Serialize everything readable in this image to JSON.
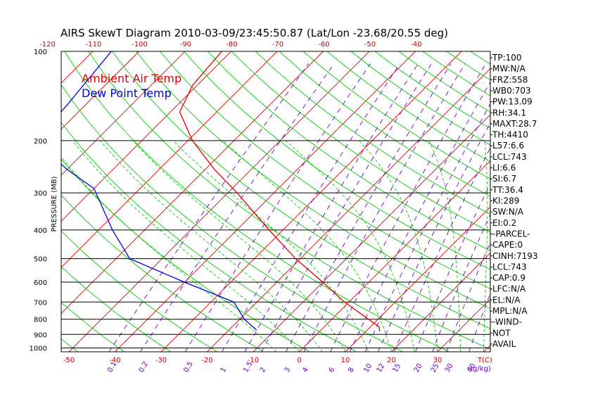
{
  "chart_data": {
    "type": "line",
    "title": "AIRS SkewT Diagram 2010-03-09/23:45:50.87 (Lat/Lon -23.68/20.55 deg)",
    "ylabel": "PRESSURE (MB)",
    "xlabel": "T(C)",
    "mixing_ratio_unit": "r(g/kg)",
    "pressure_ticks": [
      100,
      200,
      300,
      400,
      500,
      600,
      700,
      800,
      900,
      1000
    ],
    "bottom_temp_ticks": [
      -50,
      -40,
      -30,
      -20,
      -10,
      0,
      10,
      20,
      30
    ],
    "top_temp_ticks": [
      -120,
      -110,
      -100,
      -90,
      -80,
      -70,
      -60,
      -50,
      -40
    ],
    "mixing_ratio_labels": [
      "0.1",
      "0.2",
      "0.5",
      "1",
      "1.5",
      "2",
      "3",
      "4",
      "6",
      "8",
      "10",
      "12",
      "15",
      "20",
      "25",
      "30",
      "40"
    ],
    "series": [
      {
        "name": "Ambient Air Temp",
        "color": "#e00000",
        "points": [
          {
            "p": 100,
            "t": -82
          },
          {
            "p": 130,
            "t": -81
          },
          {
            "p": 160,
            "t": -78
          },
          {
            "p": 200,
            "t": -69
          },
          {
            "p": 250,
            "t": -58
          },
          {
            "p": 300,
            "t": -48
          },
          {
            "p": 400,
            "t": -33
          },
          {
            "p": 500,
            "t": -21
          },
          {
            "p": 600,
            "t": -10
          },
          {
            "p": 700,
            "t": -1
          },
          {
            "p": 850,
            "t": 12
          },
          {
            "p": 880,
            "t": 13
          }
        ]
      },
      {
        "name": "Dew Point Temp",
        "color": "#0000dd",
        "points": [
          {
            "p": 100,
            "t": -106
          },
          {
            "p": 150,
            "t": -104
          },
          {
            "p": 200,
            "t": -103
          },
          {
            "p": 250,
            "t": -90
          },
          {
            "p": 290,
            "t": -80
          },
          {
            "p": 400,
            "t": -67
          },
          {
            "p": 500,
            "t": -57
          },
          {
            "p": 600,
            "t": -40
          },
          {
            "p": 700,
            "t": -25
          },
          {
            "p": 800,
            "t": -19
          },
          {
            "p": 870,
            "t": -14
          }
        ]
      }
    ]
  },
  "indices": [
    "TP:100",
    "MW:N/A",
    "FRZ:558",
    "WB0:703",
    "PW:13.09",
    "RH:34.1",
    "MAXT:28.7",
    "TH:4410",
    "L57:6.6",
    "LCL:743",
    "LI:6.6",
    "SI:6.7",
    "TT:36.4",
    "KI:289",
    "SW:N/A",
    "EI:0.2",
    "-PARCEL-",
    "CAPE:0",
    "CINH:7193",
    "LCL:743",
    "CAP:0.9",
    "LFC:N/A",
    "EL:N/A",
    "MPL:N/A",
    "-WIND-",
    "NOT",
    "AVAIL"
  ],
  "colors": {
    "temp_line": "#e00000",
    "dew_line": "#0000dd",
    "isotherm": "#e00000",
    "dry_adiabat": "#00cc00",
    "moist_adiabat": "#00cc00",
    "mixing_ratio": "#6a00c8",
    "isobar": "#000000",
    "axis_label": "#c00000",
    "mr_label": "#6a00c8"
  }
}
